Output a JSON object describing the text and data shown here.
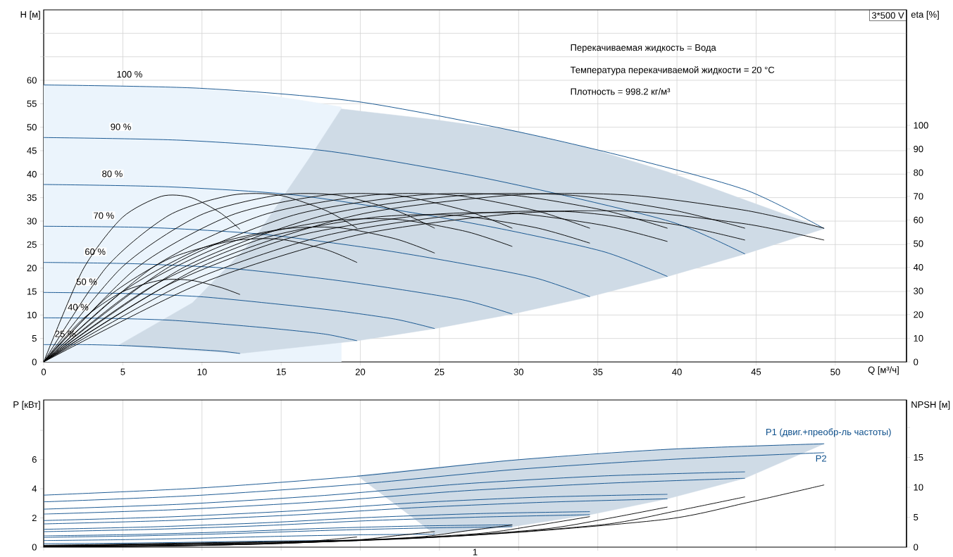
{
  "chart_data": [
    {
      "type": "line",
      "ylabel": "H [м]",
      "y2label": "eta [%]",
      "xlabel": "Q [м³/ч]",
      "xlim": [
        0,
        54.5
      ],
      "ylim": [
        0,
        75
      ],
      "y2lim": [
        0,
        148.8
      ],
      "xticks": [
        0,
        5,
        10,
        15,
        20,
        25,
        30,
        35,
        40,
        45,
        50
      ],
      "yticks": [
        0,
        5,
        10,
        15,
        20,
        25,
        30,
        35,
        40,
        45,
        50,
        55,
        60,
        {
          "value": 65,
          "label": null
        },
        {
          "value": 70,
          "label": null
        }
      ],
      "y2ticks": [
        0,
        10,
        20,
        30,
        40,
        50,
        60,
        70,
        80,
        90,
        100
      ],
      "grid": true,
      "annotations": [
        "3*500 V",
        "Перекачиваемая жидкость = Вода",
        "Температура перекачиваемой жидкости = 20 °C",
        "Плотность = 998.2 кг/м³"
      ],
      "series": [
        {
          "type": "area",
          "axis": "y",
          "color": "#ebf4fc",
          "x": [
            0,
            4.7,
            9.4,
            12.4,
            13.4,
            16.7,
            18.8
          ],
          "values": [
            59,
            58.8,
            58.3,
            57.5,
            57.2,
            55.5,
            54.3
          ]
        },
        {
          "type": "area",
          "axis": "y",
          "color": "#cfdbe6",
          "x": [
            4.7,
            9.4,
            12.4,
            13.4,
            16.7,
            18.8,
            19.8,
            24.7,
            29.6,
            34.5,
            39.4,
            44.3,
            49.3
          ],
          "values": [
            3.5,
            12.6,
            23,
            26.7,
            43,
            53.9,
            53.5,
            51.6,
            49.3,
            45.5,
            40.5,
            34.5,
            28.4
          ]
        },
        {
          "axis": "y",
          "name": "100 %",
          "color": "#0d4f8b",
          "x": [
            0,
            9.86,
            19.72,
            29.58,
            36.98,
            44.37,
            49.3
          ],
          "values": [
            59,
            58.3,
            55.5,
            49.3,
            43.5,
            36.6,
            28.4
          ]
        },
        {
          "axis": "y",
          "name": "90 %",
          "color": "#0d4f8b",
          "x": [
            0,
            8.86,
            17.72,
            26.58,
            33.23,
            39.87,
            44.3
          ],
          "values": [
            47.8,
            47.2,
            45,
            40,
            35.2,
            29.6,
            23
          ]
        },
        {
          "axis": "y",
          "name": "80 %",
          "color": "#0d4f8b",
          "x": [
            0,
            7.88,
            15.76,
            23.64,
            29.55,
            35.46,
            39.4
          ],
          "values": [
            37.8,
            37.3,
            35.6,
            31.6,
            27.9,
            23.4,
            18.2
          ]
        },
        {
          "axis": "y",
          "name": "70 %",
          "color": "#0d4f8b",
          "x": [
            0,
            6.9,
            13.8,
            20.7,
            25.88,
            31.05,
            34.5
          ],
          "values": [
            28.9,
            28.6,
            27.2,
            24.2,
            21.3,
            17.9,
            13.9
          ]
        },
        {
          "axis": "y",
          "name": "60 %",
          "color": "#0d4f8b",
          "x": [
            0,
            5.92,
            11.84,
            17.76,
            22.2,
            26.64,
            29.6
          ],
          "values": [
            21.2,
            20.9,
            19.9,
            17.7,
            15.6,
            13.1,
            10.2
          ]
        },
        {
          "axis": "y",
          "name": "50 %",
          "color": "#0d4f8b",
          "x": [
            0,
            4.94,
            9.88,
            14.82,
            18.53,
            22.23,
            24.7
          ],
          "values": [
            14.8,
            14.6,
            13.9,
            12.3,
            10.9,
            9.1,
            7.1
          ]
        },
        {
          "axis": "y",
          "name": "40 %",
          "color": "#0d4f8b",
          "x": [
            0,
            3.96,
            7.92,
            11.88,
            14.85,
            17.82,
            19.8
          ],
          "values": [
            9.4,
            9.3,
            8.9,
            7.9,
            7,
            5.9,
            4.5
          ]
        },
        {
          "axis": "y",
          "name": "25 %",
          "color": "#0d4f8b",
          "x": [
            0,
            2.48,
            4.96,
            7.44,
            9.3,
            11.16,
            12.4
          ],
          "values": [
            3.7,
            3.7,
            3.5,
            3.1,
            2.7,
            2.3,
            1.8
          ]
        },
        {
          "axis": "y2",
          "color": "#000000",
          "x": [
            0,
            9.86,
            19.72,
            29.58,
            36.98,
            44.37,
            49.3
          ],
          "values": [
            0,
            40,
            62,
            70.5,
            70.5,
            64,
            56.5
          ]
        },
        {
          "axis": "y2",
          "color": "#000000",
          "x": [
            0,
            8.86,
            17.72,
            26.58,
            33.23,
            39.87,
            44.3
          ],
          "values": [
            0,
            40,
            62,
            70.5,
            70.5,
            64,
            56.5
          ]
        },
        {
          "axis": "y2",
          "color": "#000000",
          "x": [
            0,
            7.88,
            15.76,
            23.64,
            29.55,
            35.46,
            39.4
          ],
          "values": [
            0,
            40,
            62,
            70.5,
            70.5,
            64,
            56.5
          ]
        },
        {
          "axis": "y2",
          "color": "#000000",
          "x": [
            0,
            6.9,
            13.8,
            20.7,
            25.88,
            31.05,
            34.5
          ],
          "values": [
            0,
            40,
            62,
            70.5,
            70.5,
            64,
            56.5
          ]
        },
        {
          "axis": "y2",
          "color": "#000000",
          "x": [
            0,
            5.92,
            11.84,
            17.76,
            22.2,
            26.64,
            29.6
          ],
          "values": [
            0,
            40,
            62,
            70.5,
            70.5,
            64,
            56.5
          ]
        },
        {
          "axis": "y2",
          "color": "#000000",
          "x": [
            0,
            4.94,
            9.88,
            14.82,
            18.53,
            22.23,
            24.7
          ],
          "values": [
            0,
            40,
            62,
            70.5,
            70.5,
            64,
            56.5
          ]
        },
        {
          "axis": "y2",
          "color": "#000000",
          "x": [
            0,
            3.96,
            7.92,
            11.88,
            14.85,
            17.82,
            19.8
          ],
          "values": [
            0,
            40,
            62,
            70.5,
            70.5,
            64,
            56.5
          ]
        },
        {
          "axis": "y2",
          "color": "#000000",
          "x": [
            0,
            2.48,
            4.96,
            7.44,
            9.3,
            11.16,
            12.4
          ],
          "values": [
            0,
            39,
            61,
            70,
            69.5,
            63,
            56
          ]
        },
        {
          "axis": "y2",
          "color": "#000000",
          "x": [
            0,
            9.86,
            19.72,
            29.58,
            36.98,
            44.37,
            49.3
          ],
          "values": [
            0,
            33,
            53.5,
            62.6,
            63.7,
            58.3,
            51.5
          ]
        },
        {
          "axis": "y2",
          "color": "#000000",
          "x": [
            0,
            8.86,
            17.72,
            26.58,
            33.23,
            39.87,
            44.3
          ],
          "values": [
            0,
            33,
            53.3,
            62.4,
            63.5,
            58.1,
            51.5
          ]
        },
        {
          "axis": "y2",
          "color": "#000000",
          "x": [
            0,
            7.88,
            15.76,
            23.64,
            29.55,
            35.46,
            39.4
          ],
          "values": [
            0,
            32.6,
            52.8,
            61.8,
            62.9,
            57.6,
            50.9
          ]
        },
        {
          "axis": "y2",
          "color": "#000000",
          "x": [
            0,
            6.9,
            13.8,
            20.7,
            25.88,
            31.05,
            34.5
          ],
          "values": [
            0,
            32.2,
            52.1,
            61,
            62,
            56.8,
            50.2
          ]
        },
        {
          "axis": "y2",
          "color": "#000000",
          "x": [
            0,
            5.92,
            11.84,
            17.76,
            22.2,
            26.64,
            29.6
          ],
          "values": [
            0,
            31.3,
            50.6,
            59.3,
            60.3,
            55.2,
            48.8
          ]
        },
        {
          "axis": "y2",
          "color": "#000000",
          "x": [
            0,
            4.94,
            9.88,
            14.82,
            18.53,
            22.23,
            24.7
          ],
          "values": [
            0,
            29.5,
            47.8,
            55.9,
            56.8,
            52,
            46
          ]
        },
        {
          "axis": "y2",
          "color": "#000000",
          "x": [
            0,
            3.96,
            7.92,
            11.88,
            14.85,
            17.82,
            19.8
          ],
          "values": [
            0,
            27,
            43.6,
            51.1,
            51.9,
            47.5,
            42
          ]
        },
        {
          "axis": "y2",
          "color": "#000000",
          "x": [
            0,
            2.48,
            4.96,
            7.44,
            9.3,
            11.16,
            12.4
          ],
          "values": [
            0,
            18.2,
            29.6,
            34.6,
            34.5,
            31.5,
            28.5
          ]
        }
      ]
    },
    {
      "type": "line",
      "ylabel": "P [кВт]",
      "y2label": "NPSH [м]",
      "xlim": [
        0,
        54.5
      ],
      "ylim": [
        0,
        10.08
      ],
      "y2lim": [
        0,
        24.6
      ],
      "xticks": [
        0,
        5,
        10,
        15,
        20,
        25,
        30,
        35,
        40,
        45,
        50
      ],
      "tick_labels": "y",
      "annotations": [
        "1"
      ],
      "yticks": [
        0,
        2,
        4,
        6,
        {
          "value": 8,
          "label": null
        }
      ],
      "y2ticks": [
        0,
        5,
        10,
        15,
        {
          "value": 20,
          "label": null
        }
      ],
      "grid": "x",
      "series": [
        {
          "type": "area",
          "axis": "y",
          "color": "#cfdbe6",
          "x": [
            19.8,
            24.7,
            29.6,
            34.5,
            39.4,
            44.3,
            49.3
          ],
          "values": [
            4.9,
            5.45,
            5.95,
            6.3,
            6.7,
            6.9,
            7.08
          ]
        },
        {
          "axis": "y",
          "name": "P1 (двиг.+преобр-ль частоты)",
          "color": "#0d4f8b",
          "x": [
            0,
            9.86,
            19.72,
            29.58,
            39.44,
            49.3
          ],
          "values": [
            3.56,
            4.05,
            4.85,
            5.95,
            6.7,
            7.08
          ]
        },
        {
          "axis": "y",
          "color": "#0d4f8b",
          "x": [
            0,
            8.86,
            17.72,
            26.58,
            35.44,
            44.3
          ],
          "values": [
            2.6,
            2.95,
            3.54,
            4.34,
            4.88,
            5.16
          ]
        },
        {
          "axis": "y",
          "color": "#0d4f8b",
          "x": [
            0,
            7.88,
            15.76,
            23.64,
            31.52,
            39.4
          ],
          "values": [
            1.82,
            2.07,
            2.48,
            3.05,
            3.43,
            3.62
          ]
        },
        {
          "axis": "y",
          "color": "#0d4f8b",
          "x": [
            0,
            6.9,
            13.8,
            20.7,
            27.6,
            34.5
          ],
          "values": [
            1.22,
            1.39,
            1.66,
            2.04,
            2.3,
            2.43
          ]
        },
        {
          "axis": "y",
          "color": "#0d4f8b",
          "x": [
            0,
            5.92,
            11.84,
            17.76,
            23.68,
            29.6
          ],
          "values": [
            0.77,
            0.87,
            1.05,
            1.29,
            1.45,
            1.53
          ]
        },
        {
          "axis": "y",
          "color": "#0d4f8b",
          "x": [
            0,
            4.94,
            9.88,
            14.82,
            19.76,
            24.7
          ],
          "values": [
            0.45,
            0.51,
            0.61,
            0.74,
            0.84,
            0.89
          ]
        },
        {
          "axis": "y",
          "color": "#0d4f8b",
          "x": [
            0,
            3.96,
            7.92,
            11.88,
            15.84,
            19.8
          ],
          "values": [
            0.23,
            0.26,
            0.31,
            0.38,
            0.43,
            0.45
          ]
        },
        {
          "axis": "y",
          "name": "P2",
          "color": "#0d4f8b",
          "x": [
            0,
            9.86,
            19.72,
            29.58,
            39.44,
            49.3
          ],
          "values": [
            3.1,
            3.55,
            4.3,
            5.3,
            6,
            6.47
          ]
        },
        {
          "axis": "y",
          "color": "#0d4f8b",
          "x": [
            0,
            8.86,
            17.72,
            26.58,
            35.44,
            44.3
          ],
          "values": [
            2.26,
            2.59,
            3.13,
            3.86,
            4.37,
            4.72
          ]
        },
        {
          "axis": "y",
          "color": "#0d4f8b",
          "x": [
            0,
            7.88,
            15.76,
            23.64,
            31.52,
            39.4
          ],
          "values": [
            1.59,
            1.82,
            2.2,
            2.71,
            3.07,
            3.31
          ]
        },
        {
          "axis": "y",
          "color": "#0d4f8b",
          "x": [
            0,
            6.9,
            13.8,
            20.7,
            27.6,
            34.5
          ],
          "values": [
            1.06,
            1.22,
            1.47,
            1.82,
            2.06,
            2.22
          ]
        },
        {
          "axis": "y",
          "color": "#0d4f8b",
          "x": [
            0,
            5.92,
            11.84,
            17.76,
            23.68,
            29.6
          ],
          "values": [
            0.67,
            0.77,
            0.93,
            1.14,
            1.3,
            1.4
          ]
        },
        {
          "axis": "y2",
          "color": "#000000",
          "x": [
            0,
            19.72,
            29.58,
            39.44,
            44.37,
            49.3
          ],
          "values": [
            0.3,
            1.2,
            2.4,
            4.7,
            7.4,
            10.4
          ]
        },
        {
          "axis": "y2",
          "color": "#000000",
          "x": [
            0,
            17.72,
            26.58,
            35.44,
            39.87,
            44.3
          ],
          "values": [
            0.2,
            1,
            1.9,
            3.8,
            6,
            8.4
          ]
        },
        {
          "axis": "y2",
          "color": "#000000",
          "x": [
            0,
            15.76,
            23.64,
            31.52,
            35.46,
            39.4
          ],
          "values": [
            0.2,
            0.8,
            1.5,
            3,
            4.7,
            6.7
          ]
        },
        {
          "axis": "y2",
          "color": "#000000",
          "x": [
            0,
            13.8,
            20.7,
            27.6,
            31.05,
            34.5
          ],
          "values": [
            0.2,
            0.6,
            1.2,
            2.3,
            3.6,
            5.1
          ]
        },
        {
          "axis": "y2",
          "color": "#000000",
          "x": [
            0,
            11.84,
            17.76,
            23.68,
            26.64,
            29.6
          ],
          "values": [
            0.1,
            0.4,
            0.9,
            1.7,
            2.7,
            3.7
          ]
        },
        {
          "axis": "y2",
          "color": "#000000",
          "x": [
            0,
            9.88,
            14.82,
            19.76,
            22.23,
            24.7
          ],
          "values": [
            0.1,
            0.3,
            0.6,
            1.2,
            1.9,
            2.6
          ]
        },
        {
          "axis": "y2",
          "color": "#000000",
          "x": [
            0,
            7.92,
            11.88,
            15.84,
            17.82,
            19.8
          ],
          "values": [
            0,
            0.2,
            0.4,
            0.8,
            1.2,
            1.7
          ]
        },
        {
          "axis": "y2",
          "color": "#000000",
          "x": [
            0,
            4.96,
            7.44,
            9.92,
            11.16,
            12.4
          ],
          "values": [
            0,
            0.1,
            0.2,
            0.3,
            0.5,
            0.7
          ]
        }
      ]
    }
  ]
}
